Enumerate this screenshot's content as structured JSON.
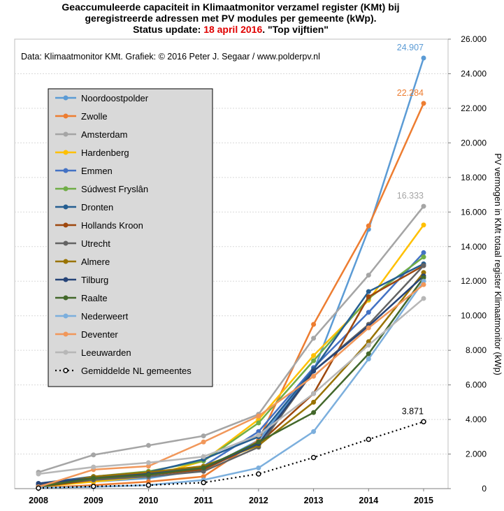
{
  "title_line1": "Geaccumuleerde capaciteit in Klimaatmonitor verzamel register (KMt) bij",
  "title_line2": "geregistreerde adressen met PV modules per gemeente (kWp).",
  "title_line3_prefix": "Status update: ",
  "title_line3_date": "18 april 2016",
  "title_line3_suffix": ". \"Top vijftien\"",
  "source_note": "Data: Klimaatmonitor  KMt. Grafiek:  © 2016 Peter J. Segaar / www.polderpv.nl",
  "chart_data": {
    "type": "line",
    "title": "Geaccumuleerde capaciteit in Klimaatmonitor verzamel register (KMt) bij geregistreerde adressen met PV modules per gemeente (kWp). Status update: 18 april 2016. \"Top vijftien\"",
    "ylabel": "PV vermogen in KMt totaal register Klimaatmonitor  (kWp)",
    "xlabel": "",
    "x": [
      2008,
      2009,
      2010,
      2011,
      2012,
      2013,
      2014,
      2015
    ],
    "x_tick_labels": [
      "2008",
      "2009",
      "2010",
      "2011",
      "2012",
      "2013",
      "2014",
      "2015"
    ],
    "ylim": [
      0,
      26000
    ],
    "y_ticks": [
      0,
      2000,
      4000,
      6000,
      8000,
      10000,
      12000,
      14000,
      16000,
      18000,
      20000,
      22000,
      24000,
      26000
    ],
    "y_tick_labels": [
      "0",
      "2.000",
      "4.000",
      "6.000",
      "8.000",
      "10.000",
      "12.000",
      "14.000",
      "16.000",
      "18.000",
      "20.000",
      "22.000",
      "24.000",
      "26.000"
    ],
    "y_axis_side": "right",
    "grid": "horizontal",
    "legend_position": "left-inside",
    "series": [
      {
        "name": "Noordoostpolder",
        "color": "#5b9bd5",
        "dash": false,
        "values": [
          150,
          400,
          600,
          1100,
          2800,
          6800,
          15000,
          24907
        ],
        "label": "24.907"
      },
      {
        "name": "Zwolle",
        "color": "#ed7d31",
        "dash": false,
        "values": [
          50,
          200,
          400,
          700,
          2800,
          9500,
          15200,
          22284
        ],
        "label": "22.284"
      },
      {
        "name": "Amsterdam",
        "color": "#a5a5a5",
        "dash": false,
        "values": [
          950,
          1950,
          2500,
          3050,
          4300,
          8700,
          12350,
          16333
        ],
        "label": "16.333"
      },
      {
        "name": "Hardenberg",
        "color": "#ffc000",
        "dash": false,
        "values": [
          100,
          400,
          700,
          1600,
          4000,
          7700,
          10900,
          15250
        ]
      },
      {
        "name": "Emmen",
        "color": "#4472c4",
        "dash": false,
        "values": [
          200,
          600,
          900,
          1300,
          3300,
          7000,
          10200,
          13650
        ]
      },
      {
        "name": "Súdwest Fryslân",
        "color": "#70ad47",
        "dash": false,
        "values": [
          100,
          700,
          1000,
          1600,
          3800,
          7400,
          11000,
          13400
        ]
      },
      {
        "name": "Dronten",
        "color": "#255e91",
        "dash": false,
        "values": [
          300,
          700,
          950,
          1700,
          3000,
          6900,
          11400,
          13000
        ]
      },
      {
        "name": "Hollands Kroon",
        "color": "#9e480e",
        "dash": false,
        "values": [
          100,
          500,
          800,
          1100,
          2600,
          5500,
          11100,
          12900
        ]
      },
      {
        "name": "Utrecht",
        "color": "#636363",
        "dash": false,
        "values": [
          250,
          500,
          700,
          1000,
          2400,
          6800,
          9500,
          12900
        ]
      },
      {
        "name": "Almere",
        "color": "#997300",
        "dash": false,
        "values": [
          100,
          700,
          950,
          1300,
          2500,
          5000,
          8500,
          12500
        ]
      },
      {
        "name": "Tilburg",
        "color": "#264478",
        "dash": false,
        "values": [
          300,
          600,
          850,
          1200,
          2600,
          6800,
          9400,
          12300
        ]
      },
      {
        "name": "Raalte",
        "color": "#43682b",
        "dash": false,
        "values": [
          100,
          600,
          800,
          1200,
          2700,
          4400,
          7800,
          12200
        ]
      },
      {
        "name": "Nederweert",
        "color": "#7cafdd",
        "dash": false,
        "values": [
          50,
          100,
          200,
          500,
          1200,
          3300,
          7500,
          12000
        ]
      },
      {
        "name": "Deventer",
        "color": "#f1975a",
        "dash": false,
        "values": [
          100,
          1100,
          1300,
          2700,
          4200,
          6500,
          9300,
          11800
        ]
      },
      {
        "name": "Leeuwarden",
        "color": "#b7b7b7",
        "dash": false,
        "values": [
          850,
          1250,
          1500,
          1850,
          3100,
          5500,
          8300,
          11000
        ]
      },
      {
        "name": "Gemiddelde NL gemeentes",
        "color": "#000000",
        "dash": true,
        "values": [
          30,
          130,
          200,
          350,
          850,
          1800,
          2850,
          3871
        ],
        "label": "3.871"
      }
    ]
  }
}
